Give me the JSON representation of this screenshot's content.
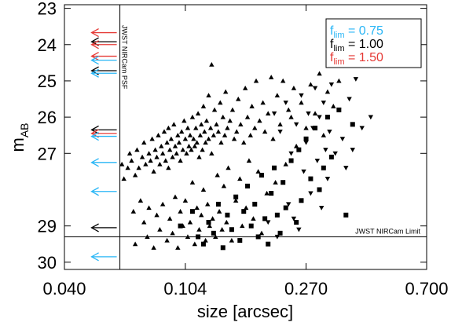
{
  "chart_data": {
    "type": "scatter",
    "x_scale": "log",
    "xlim": [
      0.04,
      0.7
    ],
    "ylim": [
      30.2,
      22.9
    ],
    "y_inverted": true,
    "xlabel": "size [arcsec]",
    "ylabel_main": "m",
    "ylabel_sub": "AB",
    "x_ticks": [
      0.04,
      0.104,
      0.27,
      0.7
    ],
    "x_tick_labels": [
      "0.040",
      "0.104",
      "0.270",
      "0.700"
    ],
    "y_ticks": [
      23,
      24,
      25,
      26,
      27,
      29,
      30
    ],
    "y_tick_labels": [
      "23",
      "24",
      "25",
      "26",
      "27",
      "29",
      "30"
    ],
    "colors": {
      "f075": "#29b6f6",
      "f100": "#000000",
      "f150": "#e53935"
    },
    "legend": {
      "position": "top-right",
      "entries": [
        {
          "prefix": "f",
          "sub": "lim",
          "value": " = 0.75",
          "color": "#29b6f6"
        },
        {
          "prefix": "f",
          "sub": "lim",
          "value": " = 1.00",
          "color": "#000000"
        },
        {
          "prefix": "f",
          "sub": "lim",
          "value": " = 1.50",
          "color": "#e53935"
        }
      ]
    },
    "annotations": {
      "psf_label": "JWST NIRCam PSF",
      "psf_x": 0.062,
      "limit_label": "JWST NIRCam Limit",
      "limit_y": 29.3
    },
    "upper_limit_arrows": [
      {
        "y": 23.67,
        "series": "f150"
      },
      {
        "y": 23.92,
        "series": "f100"
      },
      {
        "y": 24.0,
        "series": "f150"
      },
      {
        "y": 24.32,
        "series": "f150"
      },
      {
        "y": 24.43,
        "series": "f075"
      },
      {
        "y": 24.72,
        "series": "f100"
      },
      {
        "y": 24.79,
        "series": "f075"
      },
      {
        "y": 26.35,
        "series": "f100"
      },
      {
        "y": 26.45,
        "series": "f150"
      },
      {
        "y": 26.53,
        "series": "f075"
      },
      {
        "y": 27.25,
        "series": "f075"
      },
      {
        "y": 28.05,
        "series": "f075"
      },
      {
        "y": 29.05,
        "series": "f100"
      },
      {
        "y": 29.85,
        "series": "f075"
      }
    ],
    "series": [
      {
        "marker": "triangle-up",
        "points": [
          [
            0.063,
            27.3
          ],
          [
            0.064,
            27.7
          ],
          [
            0.066,
            27.4
          ],
          [
            0.067,
            27.0
          ],
          [
            0.068,
            27.2
          ],
          [
            0.069,
            28.6
          ],
          [
            0.07,
            27.6
          ],
          [
            0.07,
            29.5
          ],
          [
            0.071,
            26.9
          ],
          [
            0.072,
            27.4
          ],
          [
            0.073,
            28.3
          ],
          [
            0.074,
            27.1
          ],
          [
            0.075,
            26.7
          ],
          [
            0.075,
            28.9
          ],
          [
            0.076,
            27.3
          ],
          [
            0.077,
            29.3
          ],
          [
            0.078,
            27.0
          ],
          [
            0.078,
            28.5
          ],
          [
            0.079,
            27.2
          ],
          [
            0.08,
            26.6
          ],
          [
            0.081,
            27.5
          ],
          [
            0.081,
            29.6
          ],
          [
            0.082,
            26.9
          ],
          [
            0.083,
            27.1
          ],
          [
            0.083,
            28.7
          ],
          [
            0.084,
            26.5
          ],
          [
            0.085,
            27.3
          ],
          [
            0.085,
            29.1
          ],
          [
            0.086,
            26.8
          ],
          [
            0.087,
            27.0
          ],
          [
            0.087,
            28.4
          ],
          [
            0.088,
            26.4
          ],
          [
            0.089,
            27.2
          ],
          [
            0.09,
            26.7
          ],
          [
            0.09,
            29.4
          ],
          [
            0.091,
            26.3
          ],
          [
            0.091,
            27.4
          ],
          [
            0.092,
            26.9
          ],
          [
            0.092,
            28.8
          ],
          [
            0.093,
            26.6
          ],
          [
            0.094,
            27.1
          ],
          [
            0.094,
            29.2
          ],
          [
            0.095,
            26.2
          ],
          [
            0.096,
            26.8
          ],
          [
            0.096,
            28.2
          ],
          [
            0.097,
            27.0
          ],
          [
            0.098,
            26.5
          ],
          [
            0.098,
            29.6
          ],
          [
            0.099,
            26.7
          ],
          [
            0.1,
            27.2
          ],
          [
            0.1,
            28.6
          ],
          [
            0.101,
            26.4
          ],
          [
            0.102,
            26.9
          ],
          [
            0.102,
            29.0
          ],
          [
            0.103,
            26.1
          ],
          [
            0.104,
            26.6
          ],
          [
            0.104,
            28.3
          ],
          [
            0.105,
            27.0
          ],
          [
            0.106,
            26.3
          ],
          [
            0.106,
            29.3
          ],
          [
            0.107,
            26.8
          ],
          [
            0.108,
            26.5
          ],
          [
            0.108,
            28.9
          ],
          [
            0.109,
            26.9
          ],
          [
            0.11,
            26.0
          ],
          [
            0.11,
            27.8
          ],
          [
            0.111,
            26.6
          ],
          [
            0.112,
            29.5
          ],
          [
            0.112,
            26.8
          ],
          [
            0.113,
            26.3
          ],
          [
            0.114,
            28.5
          ],
          [
            0.114,
            26.7
          ],
          [
            0.115,
            25.9
          ],
          [
            0.116,
            27.1
          ],
          [
            0.116,
            29.1
          ],
          [
            0.117,
            26.5
          ],
          [
            0.118,
            26.2
          ],
          [
            0.118,
            28.7
          ],
          [
            0.119,
            26.9
          ],
          [
            0.12,
            25.7
          ],
          [
            0.12,
            28.0
          ],
          [
            0.121,
            26.4
          ],
          [
            0.122,
            29.4
          ],
          [
            0.122,
            26.7
          ],
          [
            0.123,
            26.1
          ],
          [
            0.124,
            28.4
          ],
          [
            0.125,
            26.6
          ],
          [
            0.125,
            25.4
          ],
          [
            0.126,
            29.0
          ],
          [
            0.127,
            26.3
          ],
          [
            0.128,
            24.55
          ],
          [
            0.128,
            27.0
          ],
          [
            0.129,
            28.8
          ],
          [
            0.13,
            26.5
          ],
          [
            0.131,
            25.8
          ],
          [
            0.132,
            29.3
          ],
          [
            0.133,
            26.2
          ],
          [
            0.134,
            27.6
          ],
          [
            0.135,
            26.4
          ],
          [
            0.136,
            28.6
          ],
          [
            0.137,
            25.6
          ],
          [
            0.138,
            26.7
          ],
          [
            0.139,
            29.1
          ],
          [
            0.14,
            26.0
          ],
          [
            0.141,
            27.9
          ],
          [
            0.142,
            26.5
          ],
          [
            0.143,
            25.3
          ],
          [
            0.144,
            28.9
          ],
          [
            0.145,
            26.3
          ],
          [
            0.146,
            27.4
          ],
          [
            0.148,
            26.1
          ],
          [
            0.15,
            29.4
          ],
          [
            0.151,
            25.8
          ],
          [
            0.153,
            26.6
          ],
          [
            0.155,
            28.3
          ],
          [
            0.156,
            26.4
          ],
          [
            0.158,
            25.5
          ],
          [
            0.16,
            27.7
          ],
          [
            0.161,
            26.2
          ],
          [
            0.163,
            29.0
          ],
          [
            0.165,
            26.7
          ],
          [
            0.167,
            25.2
          ],
          [
            0.168,
            28.5
          ],
          [
            0.17,
            26.0
          ],
          [
            0.172,
            27.2
          ],
          [
            0.174,
            26.5
          ],
          [
            0.176,
            25.7
          ],
          [
            0.178,
            28.8
          ],
          [
            0.18,
            26.3
          ],
          [
            0.182,
            25.0
          ],
          [
            0.185,
            27.5
          ],
          [
            0.187,
            26.1
          ],
          [
            0.19,
            29.2
          ],
          [
            0.192,
            25.6
          ],
          [
            0.195,
            26.4
          ],
          [
            0.198,
            28.1
          ],
          [
            0.2,
            25.9
          ],
          [
            0.205,
            24.9
          ],
          [
            0.208,
            26.6
          ],
          [
            0.212,
            27.8
          ],
          [
            0.215,
            25.4
          ],
          [
            0.22,
            26.2
          ],
          [
            0.225,
            25.0
          ],
          [
            0.23,
            27.3
          ],
          [
            0.235,
            25.8
          ],
          [
            0.24,
            26.0
          ],
          [
            0.245,
            25.2
          ],
          [
            0.25,
            26.8
          ],
          [
            0.26,
            25.6
          ],
          [
            0.27,
            26.3
          ],
          [
            0.28,
            25.1
          ],
          [
            0.29,
            25.9
          ],
          [
            0.3,
            24.8
          ],
          [
            0.31,
            26.5
          ],
          [
            0.32,
            25.3
          ],
          [
            0.335,
            25.7
          ],
          [
            0.35,
            25.0
          ]
        ]
      },
      {
        "marker": "triangle-down",
        "points": [
          [
            0.21,
            25.9
          ],
          [
            0.22,
            26.4
          ],
          [
            0.23,
            25.6
          ],
          [
            0.24,
            27.0
          ],
          [
            0.25,
            26.2
          ],
          [
            0.26,
            25.4
          ],
          [
            0.265,
            27.5
          ],
          [
            0.27,
            26.7
          ],
          [
            0.275,
            25.9
          ],
          [
            0.28,
            28.1
          ],
          [
            0.285,
            26.3
          ],
          [
            0.29,
            25.2
          ],
          [
            0.295,
            27.2
          ],
          [
            0.3,
            26.0
          ],
          [
            0.305,
            28.5
          ],
          [
            0.31,
            25.6
          ],
          [
            0.315,
            26.9
          ],
          [
            0.32,
            27.7
          ],
          [
            0.325,
            26.4
          ],
          [
            0.33,
            25.1
          ],
          [
            0.34,
            27.0
          ],
          [
            0.35,
            25.8
          ],
          [
            0.36,
            26.6
          ],
          [
            0.37,
            27.4
          ],
          [
            0.38,
            25.5
          ],
          [
            0.39,
            26.9
          ],
          [
            0.4,
            24.95
          ],
          [
            0.42,
            26.3
          ],
          [
            0.45,
            26.0
          ],
          [
            0.245,
            28.8
          ],
          [
            0.255,
            29.1
          ],
          [
            0.2,
            28.9
          ],
          [
            0.215,
            29.3
          ],
          [
            0.235,
            28.4
          ]
        ]
      },
      {
        "marker": "square",
        "points": [
          [
            0.1,
            29.0
          ],
          [
            0.11,
            28.6
          ],
          [
            0.115,
            29.3
          ],
          [
            0.12,
            29.5
          ],
          [
            0.125,
            28.9
          ],
          [
            0.13,
            29.2
          ],
          [
            0.135,
            28.4
          ],
          [
            0.14,
            29.6
          ],
          [
            0.145,
            28.7
          ],
          [
            0.15,
            29.1
          ],
          [
            0.155,
            28.2
          ],
          [
            0.16,
            29.4
          ],
          [
            0.165,
            28.6
          ],
          [
            0.17,
            27.9
          ],
          [
            0.175,
            29.0
          ],
          [
            0.18,
            28.4
          ],
          [
            0.185,
            29.3
          ],
          [
            0.19,
            27.6
          ],
          [
            0.195,
            28.8
          ],
          [
            0.2,
            29.5
          ],
          [
            0.205,
            28.1
          ],
          [
            0.21,
            27.4
          ],
          [
            0.215,
            28.7
          ],
          [
            0.22,
            29.2
          ],
          [
            0.225,
            27.8
          ],
          [
            0.23,
            28.5
          ],
          [
            0.24,
            27.2
          ],
          [
            0.25,
            28.9
          ],
          [
            0.255,
            26.9
          ],
          [
            0.26,
            28.3
          ],
          [
            0.27,
            26.6
          ],
          [
            0.28,
            27.7
          ],
          [
            0.29,
            26.3
          ],
          [
            0.3,
            28.0
          ],
          [
            0.31,
            27.4
          ],
          [
            0.32,
            26.0
          ],
          [
            0.33,
            27.1
          ],
          [
            0.35,
            25.8
          ],
          [
            0.37,
            28.7
          ],
          [
            0.39,
            26.2
          ]
        ]
      }
    ]
  }
}
